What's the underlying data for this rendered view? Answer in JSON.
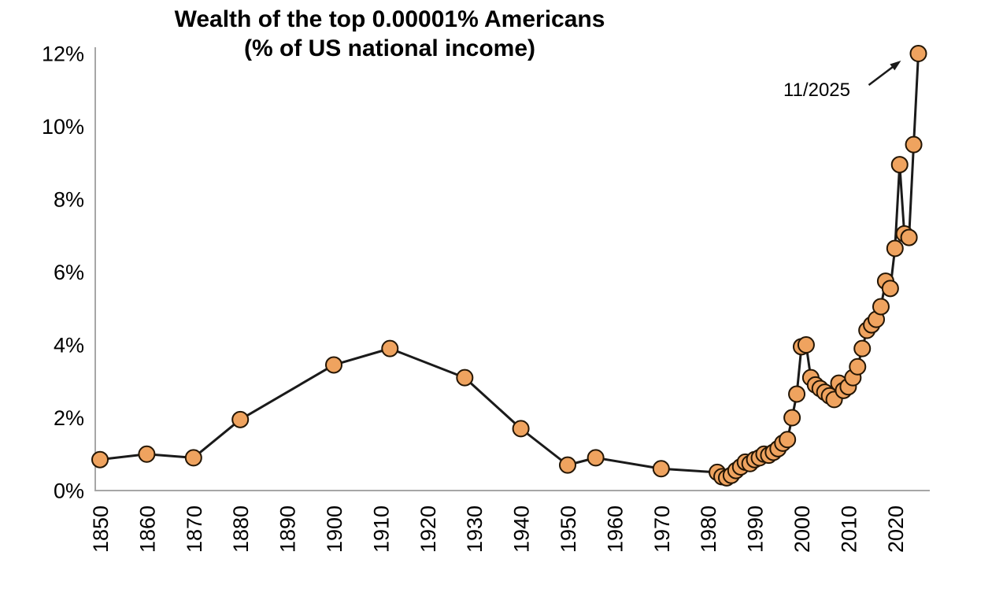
{
  "chart_data": {
    "type": "line",
    "title": "Wealth of the top 0.00001% Americans",
    "subtitle": "(% of US national income)",
    "xlabel": "",
    "ylabel": "",
    "x_ticks": [
      1850,
      1860,
      1870,
      1880,
      1890,
      1900,
      1910,
      1920,
      1930,
      1940,
      1950,
      1960,
      1970,
      1980,
      1990,
      2000,
      2010,
      2020
    ],
    "y_ticks": [
      0,
      2,
      4,
      6,
      8,
      10,
      12
    ],
    "y_tick_suffix": "%",
    "xlim": [
      1849,
      2027
    ],
    "ylim": [
      0,
      12.5
    ],
    "grid": false,
    "legend": "none",
    "annotation": {
      "label": "11/2025",
      "target_year": 2025
    },
    "colors": {
      "marker_fill": "#EFA35F",
      "marker_stroke": "#231504",
      "line": "#1A1A1A",
      "axis": "#A6A6A6",
      "text": "#000000"
    },
    "series": [
      {
        "name": "Wealth of the top 0.00001% Americans (% of US national income)",
        "points": [
          [
            1850,
            0.85
          ],
          [
            1860,
            1.0
          ],
          [
            1870,
            0.9
          ],
          [
            1880,
            1.95
          ],
          [
            1900,
            3.45
          ],
          [
            1912,
            3.9
          ],
          [
            1928,
            3.1
          ],
          [
            1940,
            1.7
          ],
          [
            1950,
            0.7
          ],
          [
            1956,
            0.9
          ],
          [
            1970,
            0.6
          ],
          [
            1982,
            0.5
          ],
          [
            1983,
            0.38
          ],
          [
            1984,
            0.35
          ],
          [
            1985,
            0.42
          ],
          [
            1986,
            0.55
          ],
          [
            1987,
            0.65
          ],
          [
            1988,
            0.78
          ],
          [
            1989,
            0.74
          ],
          [
            1990,
            0.85
          ],
          [
            1991,
            0.9
          ],
          [
            1992,
            1.0
          ],
          [
            1993,
            0.97
          ],
          [
            1994,
            1.05
          ],
          [
            1995,
            1.15
          ],
          [
            1996,
            1.3
          ],
          [
            1997,
            1.4
          ],
          [
            1998,
            2.0
          ],
          [
            1999,
            2.65
          ],
          [
            2000,
            3.95
          ],
          [
            2001,
            4.0
          ],
          [
            2002,
            3.1
          ],
          [
            2003,
            2.9
          ],
          [
            2004,
            2.8
          ],
          [
            2005,
            2.7
          ],
          [
            2006,
            2.6
          ],
          [
            2007,
            2.5
          ],
          [
            2008,
            2.95
          ],
          [
            2009,
            2.75
          ],
          [
            2010,
            2.85
          ],
          [
            2011,
            3.1
          ],
          [
            2012,
            3.4
          ],
          [
            2013,
            3.9
          ],
          [
            2014,
            4.4
          ],
          [
            2015,
            4.55
          ],
          [
            2016,
            4.7
          ],
          [
            2017,
            5.05
          ],
          [
            2018,
            5.75
          ],
          [
            2019,
            5.55
          ],
          [
            2020,
            6.65
          ],
          [
            2021,
            8.95
          ],
          [
            2022,
            7.05
          ],
          [
            2023,
            6.95
          ],
          [
            2024,
            9.5
          ],
          [
            2025,
            12.0
          ]
        ]
      }
    ]
  }
}
